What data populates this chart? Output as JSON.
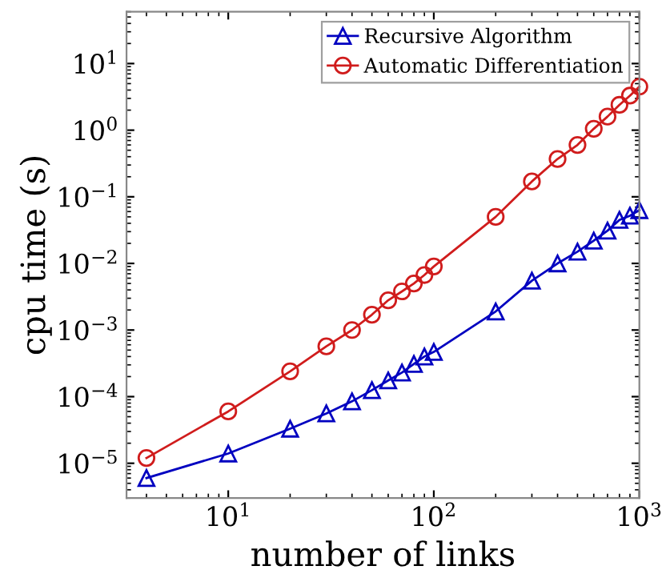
{
  "chart_data": {
    "type": "line",
    "xlabel": "number of links",
    "ylabel": "cpu time (s)",
    "log": "xy",
    "grid": false,
    "legend": "top right",
    "line_style": "solid",
    "x": [
      4,
      10,
      20,
      30,
      40,
      50,
      60,
      70,
      80,
      90,
      100,
      200,
      300,
      400,
      500,
      600,
      700,
      800,
      900,
      1000
    ],
    "xlim": [
      3.2,
      1000
    ],
    "ylim": [
      3e-06,
      60
    ],
    "xticks": [
      {
        "value": 10,
        "label": "10$^{1}$"
      },
      {
        "value": 100,
        "label": "10$^{2}$"
      },
      {
        "value": 1000,
        "label": "10$^{3}$"
      }
    ],
    "yticks": [
      {
        "value": 1e-05,
        "label": "10$^{−5}$"
      },
      {
        "value": 0.0001,
        "label": "10$^{−4}$"
      },
      {
        "value": 0.001,
        "label": "10$^{−3}$"
      },
      {
        "value": 0.01,
        "label": "10$^{−2}$"
      },
      {
        "value": 0.1,
        "label": "10$^{−1}$"
      },
      {
        "value": 1,
        "label": "10$^{0}$"
      },
      {
        "value": 10,
        "label": "10$^{1}$"
      }
    ],
    "series": [
      {
        "name": "Recursive Algorithm",
        "color": "#0000c0",
        "marker": "triangle",
        "values": [
          6e-06,
          1.4e-05,
          3.3e-05,
          5.6e-05,
          8.5e-05,
          0.000125,
          0.000175,
          0.00023,
          0.00031,
          0.0004,
          0.00047,
          0.0019,
          0.0055,
          0.01,
          0.015,
          0.022,
          0.031,
          0.045,
          0.052,
          0.063
        ]
      },
      {
        "name": "Automatic Differentiation",
        "color": "#d01c1c",
        "marker": "circle",
        "values": [
          1.2e-05,
          6e-05,
          0.00024,
          0.00057,
          0.001,
          0.0017,
          0.0028,
          0.0038,
          0.005,
          0.0067,
          0.009,
          0.05,
          0.17,
          0.37,
          0.6,
          1.05,
          1.6,
          2.4,
          3.3,
          4.5
        ]
      }
    ]
  }
}
